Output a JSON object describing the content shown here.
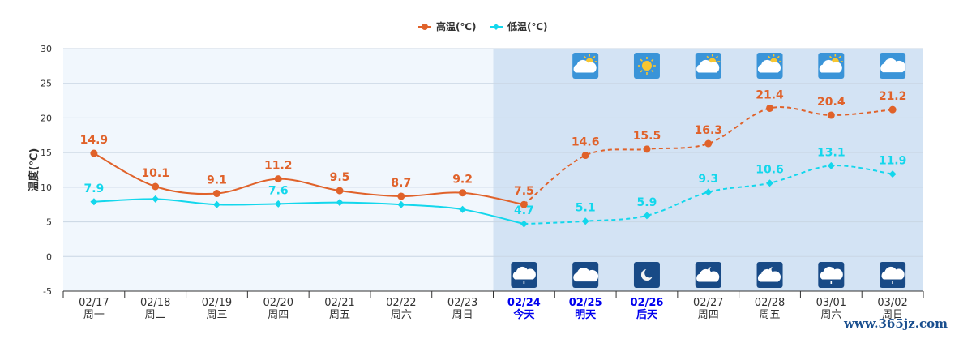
{
  "chart_data": {
    "type": "line",
    "ylabel": "温度(℃)",
    "ylim": [
      -5,
      30
    ],
    "yticks": [
      -5,
      0,
      5,
      10,
      15,
      20,
      25,
      30
    ],
    "grid": true,
    "legend_position": "top-center",
    "categories": [
      "02/17",
      "02/18",
      "02/19",
      "02/20",
      "02/21",
      "02/22",
      "02/23",
      "02/24",
      "02/25",
      "02/26",
      "02/27",
      "02/28",
      "03/01",
      "03/02"
    ],
    "day_labels": [
      "周一",
      "周二",
      "周三",
      "周四",
      "周五",
      "周六",
      "周日",
      "今天",
      "明天",
      "后天",
      "周四",
      "周五",
      "周六",
      "周日"
    ],
    "highlight_days": [
      7,
      8,
      9
    ],
    "forecast_start_index": 7,
    "series": [
      {
        "name": "高温(℃)",
        "color": "#e0622a",
        "values": [
          14.9,
          10.1,
          9.1,
          11.2,
          9.5,
          8.7,
          9.2,
          7.5,
          14.6,
          15.5,
          16.3,
          21.4,
          20.4,
          21.2
        ]
      },
      {
        "name": "低温(℃)",
        "color": "#13d7ec",
        "values": [
          7.9,
          8.3,
          7.5,
          7.6,
          7.8,
          7.5,
          6.8,
          4.7,
          5.1,
          5.9,
          9.3,
          10.6,
          13.1,
          11.9
        ]
      }
    ],
    "low_labels_shown": [
      true,
      false,
      false,
      true,
      false,
      false,
      false,
      true,
      true,
      true,
      true,
      true,
      true,
      true
    ],
    "day_weather_icons": [
      "partly-cloudy-icon",
      "sunny-icon",
      "partly-cloudy-icon",
      "partly-cloudy-icon",
      "partly-cloudy-icon",
      "cloudy-icon"
    ],
    "night_weather_icons": [
      "light-rain-night-icon",
      "cloudy-night-icon",
      "clear-night-icon",
      "cloudy-moon-icon",
      "cloudy-moon-icon",
      "light-rain-night-icon",
      "light-rain-night-icon"
    ],
    "colors": {
      "history_bg": "#f1f7fd",
      "forecast_bg": "#d3e3f4",
      "grid": "#c9d6e3",
      "day_icon_bg": "#3a94d8",
      "night_icon_bg": "#184a86",
      "highlight": "#0000ee"
    }
  },
  "watermark": "www.365jz.com"
}
